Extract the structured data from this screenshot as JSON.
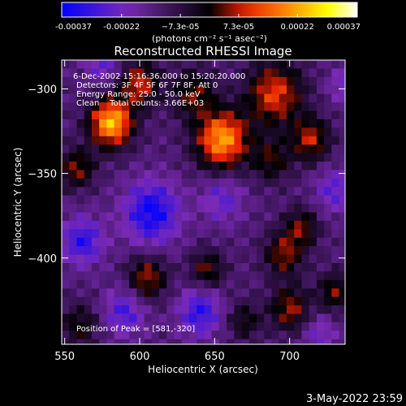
{
  "chart_data": {
    "type": "heatmap",
    "title": "Reconstructed RHESSI Image",
    "xlabel": "Heliocentric X (arcsec)",
    "ylabel": "Heliocentric Y (arcsec)",
    "xlim": [
      548,
      737
    ],
    "ylim": [
      -451,
      -283
    ],
    "x_ticks": [
      550,
      600,
      650,
      700
    ],
    "x_tick_labels": [
      "550",
      "600",
      "650",
      "700"
    ],
    "y_ticks": [
      -400,
      -350,
      -300
    ],
    "y_tick_labels": [
      "−400",
      "−350",
      "−300"
    ],
    "colorbar": {
      "ticks": [
        -0.00037,
        -0.00022,
        -7.3e-05,
        7.3e-05,
        0.00022,
        0.00037
      ],
      "tick_labels": [
        "-0.00037",
        "-0.00022",
        "−7.3e-05",
        "7.3e-05",
        "0.00022",
        "0.00037"
      ],
      "unit_label": "(photons cm⁻² s⁻¹ asec⁻²)",
      "range": [
        -0.00037,
        0.00037
      ],
      "colormap": [
        "#0000ff",
        "#7a2ab5",
        "#000000",
        "#e61e00",
        "#ff8800",
        "#ffff00",
        "#ffffff"
      ]
    },
    "annotations": [
      "6-Dec-2002 15:16:36.000 to 15:20:20.000",
      "Detectors: 3F 4F 5F 6F 7F 8F, Att 0",
      "Energy Range: 25.0 - 50.0 keV",
      "Clean    Total counts: 3.66E+03"
    ],
    "peak_text": "Position of Peak = [581,-320]",
    "sources": [
      {
        "x": 581,
        "y": -320,
        "amp": 0.00037,
        "sigma": 10
      },
      {
        "x": 655,
        "y": -330,
        "amp": 0.00034,
        "sigma": 12
      },
      {
        "x": 600,
        "y": -297,
        "amp": 0.00022,
        "sigma": 9
      },
      {
        "x": 690,
        "y": -303,
        "amp": 0.00024,
        "sigma": 13
      },
      {
        "x": 714,
        "y": -330,
        "amp": 0.0002,
        "sigma": 9
      },
      {
        "x": 636,
        "y": -303,
        "amp": 0.00016,
        "sigma": 10
      },
      {
        "x": 558,
        "y": -347,
        "amp": 0.00018,
        "sigma": 8
      },
      {
        "x": 688,
        "y": -342,
        "amp": 0.00014,
        "sigma": 9
      },
      {
        "x": 708,
        "y": -382,
        "amp": 0.00016,
        "sigma": 8
      },
      {
        "x": 696,
        "y": -398,
        "amp": 0.00018,
        "sigma": 9
      },
      {
        "x": 605,
        "y": -412,
        "amp": 0.0002,
        "sigma": 9
      },
      {
        "x": 645,
        "y": -407,
        "amp": 0.00016,
        "sigma": 8
      },
      {
        "x": 730,
        "y": -420,
        "amp": 0.00016,
        "sigma": 8
      },
      {
        "x": 700,
        "y": -430,
        "amp": 0.00019,
        "sigma": 9
      },
      {
        "x": 670,
        "y": -437,
        "amp": 0.00012,
        "sigma": 8
      },
      {
        "x": 560,
        "y": -440,
        "amp": 0.00013,
        "sigma": 9
      },
      {
        "x": 608,
        "y": -373,
        "amp": -0.00022,
        "sigma": 13
      },
      {
        "x": 562,
        "y": -390,
        "amp": -0.00018,
        "sigma": 10
      },
      {
        "x": 640,
        "y": -432,
        "amp": -0.00018,
        "sigma": 10
      },
      {
        "x": 590,
        "y": -432,
        "amp": -0.00015,
        "sigma": 10
      },
      {
        "x": 655,
        "y": -365,
        "amp": -0.00012,
        "sigma": 10
      },
      {
        "x": 575,
        "y": -285,
        "amp": -0.00012,
        "sigma": 8
      },
      {
        "x": 730,
        "y": -360,
        "amp": -0.00013,
        "sigma": 9
      },
      {
        "x": 735,
        "y": -298,
        "amp": -0.0001,
        "sigma": 7
      },
      {
        "x": 720,
        "y": -445,
        "amp": -0.0001,
        "sigma": 8
      }
    ]
  },
  "footer": {
    "timestamp": "3-May-2022 23:59"
  }
}
